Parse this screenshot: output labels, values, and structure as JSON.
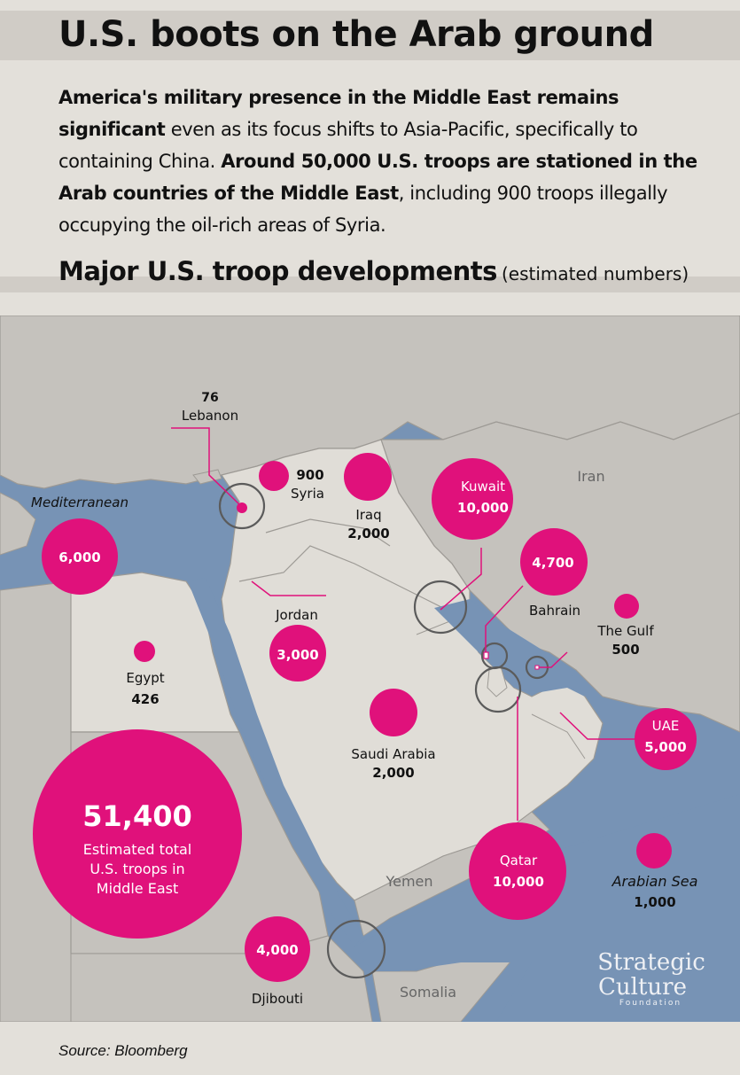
{
  "header": {
    "title": "U.S. boots on the Arab ground",
    "intro": {
      "bold_1": "America's military presence in the Middle East remains significant",
      "normal_1": " even as its focus shifts to Asia-Pacific, specifically to containing China. ",
      "bold_2": "Around 50,000 U.S. troops are stationed in the Arab countries of the Middle East",
      "normal_2": ", including 900 troops illegally occupying the oil-rich areas of Syria."
    },
    "subtitle": "Major U.S. troop developments",
    "subtitle_note": "(estimated numbers)"
  },
  "map": {
    "colors": {
      "sea": "#7793b5",
      "land_arab": "#e0ddd7",
      "land_other": "#c5c2bd",
      "border": "#9d9a95",
      "bubble": "#e0117b",
      "ring": "#5b5b5b"
    },
    "sea_labels": {
      "mediterranean": "Mediterranean",
      "arabian_sea": "Arabian Sea"
    },
    "region_labels": {
      "iran": "Iran",
      "yemen": "Yemen",
      "somalia": "Somalia"
    },
    "troops": {
      "lebanon": {
        "name": "Lebanon",
        "troops": "76"
      },
      "syria": {
        "name": "Syria",
        "troops": "900"
      },
      "iraq": {
        "name": "Iraq",
        "troops": "2,000"
      },
      "kuwait": {
        "name": "Kuwait",
        "troops": "10,000"
      },
      "bahrain": {
        "name": "Bahrain",
        "troops": "4,700"
      },
      "gulf": {
        "name": "The Gulf",
        "troops": "500"
      },
      "mediterranean": {
        "troops": "6,000"
      },
      "jordan": {
        "name": "Jordan",
        "troops": "3,000"
      },
      "egypt": {
        "name": "Egypt",
        "troops": "426"
      },
      "saudi": {
        "name": "Saudi Arabia",
        "troops": "2,000"
      },
      "uae": {
        "name": "UAE",
        "troops": "5,000"
      },
      "qatar": {
        "name": "Qatar",
        "troops": "10,000"
      },
      "arabian_sea": {
        "troops": "1,000"
      },
      "djibouti": {
        "name": "Djibouti",
        "troops": "4,000"
      }
    },
    "total": {
      "value": "51,400",
      "line_1": "Estimated total",
      "line_2": "U.S. troops in",
      "line_3": "Middle East"
    }
  },
  "logo": {
    "line_1": "Strategic",
    "line_2": "Culture",
    "line_3": "Foundation"
  },
  "footer": {
    "source": "Source: Bloomberg"
  }
}
